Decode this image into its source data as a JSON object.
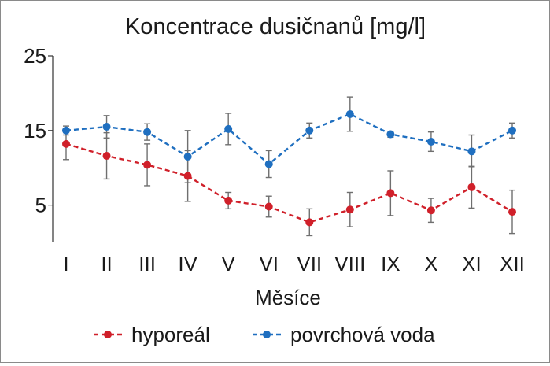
{
  "chart_data": {
    "type": "line",
    "title": "Koncentrace dusičnanů [mg/l]",
    "xlabel": "Měsíce",
    "ylabel": "",
    "categories": [
      "I",
      "II",
      "III",
      "IV",
      "V",
      "VI",
      "VII",
      "VIII",
      "IX",
      "X",
      "XI",
      "XII"
    ],
    "yticks": [
      5,
      15,
      25
    ],
    "ylim": [
      0,
      25
    ],
    "grid": false,
    "legend_position": "bottom",
    "series": [
      {
        "name": "hyporeál",
        "color": "#d0202a",
        "line_style": "dashed",
        "values": [
          13.2,
          11.6,
          10.4,
          8.9,
          5.6,
          4.8,
          2.7,
          4.4,
          6.6,
          4.3,
          7.4,
          4.1
        ],
        "errors": [
          2.1,
          3.1,
          2.8,
          3.4,
          1.1,
          1.4,
          1.8,
          2.3,
          3.0,
          1.6,
          2.8,
          2.9
        ]
      },
      {
        "name": "povrchová voda",
        "color": "#1f6fc0",
        "line_style": "dashed",
        "values": [
          15.0,
          15.5,
          14.8,
          11.5,
          15.2,
          10.5,
          15.0,
          17.2,
          14.5,
          13.5,
          12.2,
          15.0
        ],
        "errors": [
          0.6,
          1.5,
          1.1,
          3.5,
          2.1,
          1.8,
          1.0,
          2.3,
          0.4,
          1.3,
          2.2,
          1.0
        ]
      }
    ]
  }
}
